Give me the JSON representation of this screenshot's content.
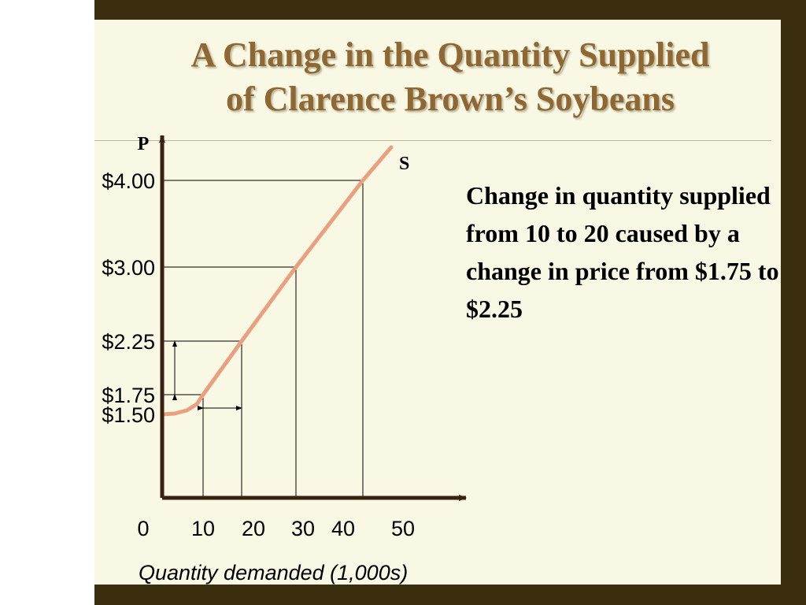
{
  "title": {
    "line1": "A Change in the Quantity Supplied",
    "line2": "of Clarence Brown’s Soybeans"
  },
  "annotation": "Change in quantity supplied from 10 to 20 caused by a change in price from $1.75 to $2.25",
  "colors": {
    "frame": "#3a2e0e",
    "slide": "#f9f8e4",
    "title": "#8f6732",
    "supply_curve": "#e9a07f",
    "axes": "#3a2010"
  },
  "chart_data": {
    "type": "line",
    "title": "",
    "ylabel": "P",
    "xlabel": "Quantity demanded  (1,000s)",
    "x_ticks": [
      {
        "value": 0,
        "label": "0"
      },
      {
        "value": 10,
        "label": "10"
      },
      {
        "value": 20,
        "label": "20"
      },
      {
        "value": 30,
        "label": "30"
      },
      {
        "value": 40,
        "label": "40"
      },
      {
        "value": 50,
        "label": "50"
      }
    ],
    "y_ticks": [
      {
        "value": 1.5,
        "label": "$1.50"
      },
      {
        "value": 1.75,
        "label": "$1.75"
      },
      {
        "value": 2.25,
        "label": "$2.25"
      },
      {
        "value": 3.0,
        "label": "$3.00"
      },
      {
        "value": 4.0,
        "label": "$4.00"
      }
    ],
    "series": [
      {
        "name": "S",
        "points": [
          {
            "x": 0,
            "y": 1.5
          },
          {
            "x": 3,
            "y": 1.51
          },
          {
            "x": 6,
            "y": 1.55
          },
          {
            "x": 8.5,
            "y": 1.63
          },
          {
            "x": 10,
            "y": 1.75
          },
          {
            "x": 20,
            "y": 2.25
          },
          {
            "x": 30,
            "y": 3.0
          },
          {
            "x": 40,
            "y": 4.0
          },
          {
            "x": 45,
            "y": 4.4
          }
        ]
      }
    ],
    "reference_points": [
      {
        "x": 10,
        "y": 1.75
      },
      {
        "x": 20,
        "y": 2.25
      },
      {
        "x": 30,
        "y": 3.0
      },
      {
        "x": 40,
        "y": 4.0
      }
    ],
    "arrows": [
      {
        "axis": "price",
        "from": 1.75,
        "to": 2.25
      },
      {
        "axis": "quantity",
        "from": 10,
        "to": 20
      }
    ],
    "grid": false,
    "legend": "none"
  }
}
